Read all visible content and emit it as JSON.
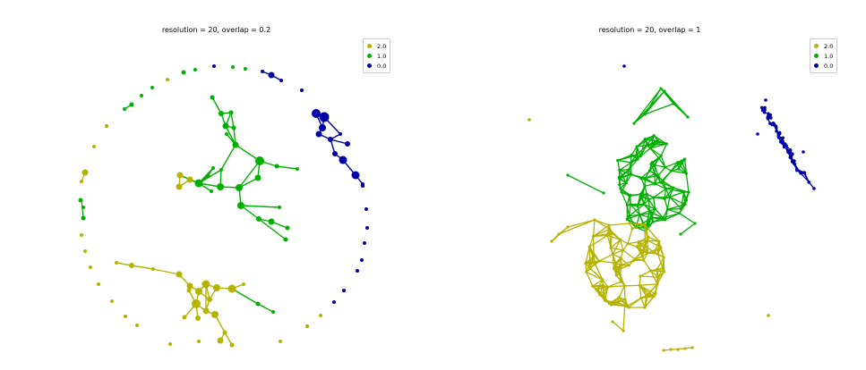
{
  "chart_data": [
    {
      "type": "network",
      "title": "resolution = 20, overlap = 0.2",
      "legend": [
        "2.0",
        "1.0",
        "0.0"
      ],
      "legend_placement": "top-right",
      "colors": {
        "2.0": "#b5b300",
        "1.0": "#00b000",
        "0.0": "#0000a8"
      },
      "clusters": [
        {
          "label": "1.0",
          "description": "branching tree of nodes in center",
          "node_count": 22
        },
        {
          "label": "2.0",
          "description": "tree of nodes at bottom",
          "node_count": 16
        },
        {
          "label": "0.0",
          "description": "chain of nodes at upper right",
          "node_count": 13
        },
        {
          "label": "mixed",
          "description": "isolated single nodes arranged on an outer ring",
          "node_count": 40
        }
      ]
    },
    {
      "type": "network",
      "title": "resolution = 20, overlap = 1",
      "legend": [
        "2.0",
        "1.0",
        "0.0"
      ],
      "legend_placement": "top-right",
      "colors": {
        "2.0": "#b5b300",
        "1.0": "#00b000",
        "0.0": "#0000a8"
      },
      "clusters": [
        {
          "label": "1.0",
          "description": "dense mesh of connected nodes, upper center"
        },
        {
          "label": "2.0",
          "description": "dense mesh of connected nodes, lower left"
        },
        {
          "label": "0.0",
          "description": "dense elongated mesh at right"
        }
      ]
    }
  ]
}
